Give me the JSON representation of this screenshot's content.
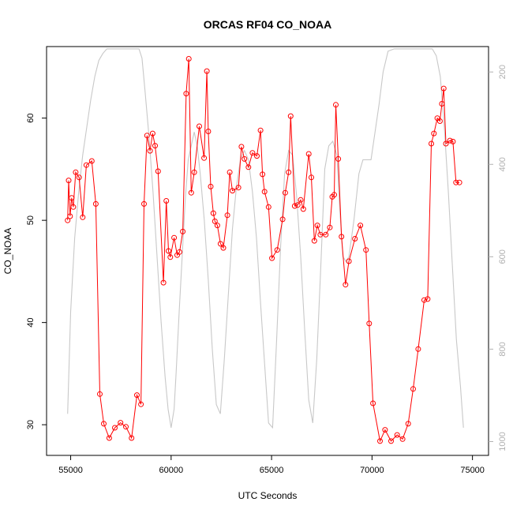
{
  "chart_data": {
    "type": "line",
    "title": "ORCAS RF04 CO_NOAA",
    "xlabel": "UTC Seconds",
    "ylabel": "CO_NOAA",
    "xlim": [
      53800,
      75800
    ],
    "ylim": [
      27.0,
      67.0
    ],
    "y2lim": [
      1030,
      145
    ],
    "grid": false,
    "x_ticks": [
      55000,
      60000,
      65000,
      70000,
      75000
    ],
    "x_tick_labels": [
      "55000",
      "60000",
      "65000",
      "70000",
      "75000"
    ],
    "y_ticks": [
      30,
      40,
      50,
      60
    ],
    "y_tick_labels": [
      "30",
      "40",
      "50",
      "60"
    ],
    "y2_ticks": [
      200,
      400,
      600,
      800,
      1000
    ],
    "y2_tick_labels": [
      "200",
      "400",
      "600",
      "800",
      "1000"
    ],
    "series": [
      {
        "color": "#ff0000",
        "marker": "open-circle",
        "axis": "left",
        "x": [
          54850,
          54900,
          54970,
          55050,
          55130,
          55250,
          55420,
          55600,
          55780,
          56050,
          56250,
          56450,
          56650,
          56920,
          57200,
          57480,
          57750,
          58030,
          58300,
          58500,
          58650,
          58800,
          58950,
          59080,
          59200,
          59350,
          59620,
          59760,
          59870,
          59960,
          60150,
          60300,
          60420,
          60580,
          60750,
          60880,
          61000,
          61150,
          61400,
          61640,
          61780,
          61850,
          61970,
          62100,
          62180,
          62300,
          62460,
          62600,
          62800,
          62920,
          63050,
          63350,
          63500,
          63650,
          63850,
          64050,
          64270,
          64450,
          64550,
          64650,
          64850,
          65020,
          65280,
          65550,
          65680,
          65850,
          65950,
          66150,
          66300,
          66450,
          66580,
          66850,
          66980,
          67130,
          67280,
          67430,
          67700,
          67900,
          68020,
          68120,
          68200,
          68320,
          68480,
          68680,
          68850,
          69150,
          69420,
          69700,
          69860,
          70050,
          70400,
          70650,
          70950,
          71250,
          71520,
          71800,
          72050,
          72300,
          72600,
          72770,
          72950,
          73080,
          73250,
          73380,
          73480,
          73570,
          73680,
          73880,
          74030,
          74180,
          74350
        ],
        "y": [
          50.0,
          53.9,
          50.4,
          52.2,
          51.3,
          54.7,
          54.2,
          50.3,
          55.4,
          55.8,
          51.6,
          33.0,
          30.1,
          28.7,
          29.7,
          30.2,
          29.8,
          28.7,
          32.9,
          32.0,
          51.6,
          58.3,
          56.8,
          58.5,
          57.3,
          54.8,
          43.9,
          51.9,
          47.0,
          46.4,
          48.3,
          46.6,
          46.9,
          48.9,
          62.4,
          65.8,
          52.7,
          54.7,
          59.2,
          56.1,
          64.6,
          58.7,
          53.3,
          50.7,
          49.9,
          49.5,
          47.7,
          47.3,
          50.5,
          54.7,
          52.9,
          53.2,
          57.2,
          56.0,
          55.2,
          56.6,
          56.3,
          58.8,
          54.5,
          52.8,
          51.3,
          46.3,
          47.1,
          50.1,
          52.7,
          54.7,
          60.2,
          51.4,
          51.5,
          52.0,
          51.1,
          56.5,
          54.2,
          48.0,
          49.5,
          48.6,
          48.6,
          49.3,
          52.3,
          52.5,
          61.3,
          56.0,
          48.4,
          43.7,
          46.0,
          48.2,
          49.5,
          47.1,
          39.9,
          32.1,
          28.4,
          29.5,
          28.4,
          29.0,
          28.6,
          30.1,
          33.5,
          37.4,
          42.2,
          42.3,
          57.5,
          58.5,
          60.0,
          59.7,
          61.4,
          62.9,
          57.5,
          57.8,
          57.7,
          53.7,
          53.7
        ],
        "markers_x": [
          54850,
          54900,
          54970,
          55050,
          55130,
          55250,
          55420,
          55600,
          55780,
          56050,
          56250,
          56450,
          56650,
          56920,
          57200,
          57480,
          57750,
          58030,
          58300,
          58500,
          58650,
          58800,
          58950,
          59080,
          59200,
          59350,
          59620,
          59760,
          59870,
          59960,
          60150,
          60300,
          60420,
          60580,
          60750,
          60880,
          61000,
          61150,
          61400,
          61640,
          61780,
          61850,
          61970,
          62100,
          62180,
          62300,
          62460,
          62600,
          62800,
          62920,
          63050,
          63350,
          63500,
          63650,
          63850,
          64050,
          64270,
          64450,
          64550,
          64650,
          64850,
          65020,
          65280,
          65550,
          65680,
          65850,
          65950,
          66150,
          66300,
          66450,
          66580,
          66850,
          66980,
          67130,
          67280,
          67430,
          67700,
          67900,
          68020,
          68120,
          68200,
          68320,
          68480,
          68680,
          68850,
          69150,
          69420,
          69700,
          69860,
          70050,
          70400,
          70650,
          70950,
          71250,
          71520,
          71800,
          72050,
          72300,
          72600,
          72770,
          72950,
          73080,
          73250,
          73380,
          73480,
          73570,
          73680,
          73880,
          74030,
          74180,
          74350
        ]
      },
      {
        "color": "#c8c8c8",
        "marker": "none",
        "axis": "right",
        "x": [
          54850,
          55000,
          55200,
          55400,
          55600,
          55800,
          56000,
          56200,
          56400,
          56600,
          56800,
          57000,
          57200,
          57500,
          57800,
          58100,
          58400,
          58550,
          58700,
          58900,
          59100,
          59300,
          59500,
          59700,
          59850,
          60000,
          60150,
          60250,
          60400,
          60550,
          60700,
          60850,
          61000,
          61150,
          61300,
          61450,
          61650,
          61850,
          62050,
          62250,
          62450,
          62650,
          62850,
          63050,
          63250,
          63450,
          63650,
          63850,
          64050,
          64250,
          64450,
          64650,
          64850,
          65050,
          65250,
          65450,
          65650,
          65850,
          66050,
          66250,
          66450,
          66650,
          66850,
          67050,
          67250,
          67450,
          67650,
          67850,
          68050,
          68250,
          68400,
          68550,
          68700,
          68850,
          69100,
          69350,
          69550,
          69750,
          69950,
          70150,
          70350,
          70550,
          70800,
          71100,
          71400,
          71800,
          72200,
          72500,
          72800,
          73000,
          73200,
          73400,
          73600,
          73800,
          74000,
          74200,
          74400,
          74550
        ],
        "y": [
          940,
          720,
          560,
          460,
          380,
          320,
          260,
          210,
          175,
          160,
          150,
          150,
          150,
          150,
          150,
          150,
          150,
          170,
          240,
          340,
          460,
          600,
          740,
          860,
          930,
          970,
          930,
          850,
          720,
          600,
          480,
          390,
          360,
          330,
          360,
          420,
          520,
          650,
          800,
          920,
          940,
          820,
          680,
          540,
          450,
          390,
          370,
          390,
          460,
          560,
          700,
          830,
          960,
          970,
          780,
          580,
          420,
          370,
          380,
          470,
          600,
          760,
          910,
          960,
          820,
          620,
          410,
          360,
          350,
          380,
          500,
          600,
          610,
          600,
          520,
          420,
          390,
          390,
          390,
          330,
          270,
          200,
          155,
          150,
          150,
          150,
          150,
          150,
          150,
          150,
          165,
          210,
          320,
          460,
          620,
          780,
          880,
          970
        ]
      }
    ]
  }
}
